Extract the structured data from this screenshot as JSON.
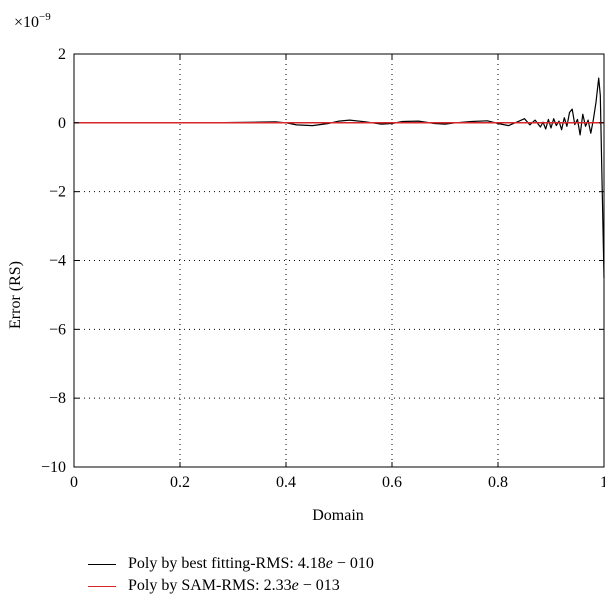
{
  "chart_data": {
    "type": "line",
    "xlabel": "Domain",
    "ylabel": "Error (RS)",
    "y_multiplier": "×10",
    "y_multiplier_exponent": "−9",
    "xlim": [
      0,
      1
    ],
    "ylim": [
      -10,
      2
    ],
    "x_ticks": [
      "0",
      "0.2",
      "0.4",
      "0.6",
      "0.8",
      "1"
    ],
    "x_tick_values": [
      0,
      0.2,
      0.4,
      0.6,
      0.8,
      1
    ],
    "y_ticks": [
      "2",
      "0",
      "−2",
      "−4",
      "−6",
      "−8",
      "−10"
    ],
    "y_tick_values": [
      2,
      0,
      -2,
      -4,
      -6,
      -8,
      -10
    ],
    "grid": "dotted",
    "legend_position": "bottom",
    "series": [
      {
        "name": "Poly by best fitting-RMS: 4.18e − 010",
        "name_main": "Poly by best fitting-RMS: 4.18",
        "name_e": "e",
        "name_tail": " − 010",
        "color": "#000000",
        "x": [
          0,
          0.05,
          0.1,
          0.15,
          0.2,
          0.25,
          0.3,
          0.35,
          0.38,
          0.4,
          0.42,
          0.45,
          0.48,
          0.5,
          0.52,
          0.55,
          0.58,
          0.6,
          0.62,
          0.65,
          0.68,
          0.7,
          0.72,
          0.75,
          0.78,
          0.8,
          0.82,
          0.84,
          0.85,
          0.86,
          0.87,
          0.88,
          0.885,
          0.89,
          0.895,
          0.9,
          0.905,
          0.91,
          0.915,
          0.92,
          0.925,
          0.93,
          0.935,
          0.94,
          0.945,
          0.95,
          0.955,
          0.96,
          0.965,
          0.97,
          0.975,
          0.98,
          0.985,
          0.99,
          0.993,
          0.996,
          1.0
        ],
        "y": [
          0.0,
          0.0,
          0.0,
          0.0,
          0.0,
          0.0,
          0.01,
          0.02,
          0.03,
          0.0,
          -0.06,
          -0.08,
          -0.02,
          0.05,
          0.08,
          0.03,
          -0.04,
          -0.02,
          0.04,
          0.05,
          -0.02,
          -0.04,
          0.0,
          0.04,
          0.06,
          -0.02,
          -0.08,
          0.05,
          0.12,
          -0.06,
          0.08,
          -0.12,
          0.02,
          -0.18,
          0.1,
          -0.15,
          0.12,
          -0.08,
          0.05,
          -0.2,
          0.15,
          -0.1,
          0.3,
          0.4,
          -0.05,
          0.1,
          -0.35,
          0.25,
          -0.1,
          0.08,
          -0.3,
          0.1,
          0.6,
          1.3,
          0.8,
          -1.5,
          -4.5
        ]
      },
      {
        "name": "Poly by SAM-RMS: 2.33e − 013",
        "name_main": "Poly by SAM-RMS: 2.33",
        "name_e": "e",
        "name_tail": " − 013",
        "color": "#d62728",
        "x": [
          0,
          1
        ],
        "y": [
          0,
          0
        ]
      }
    ]
  }
}
